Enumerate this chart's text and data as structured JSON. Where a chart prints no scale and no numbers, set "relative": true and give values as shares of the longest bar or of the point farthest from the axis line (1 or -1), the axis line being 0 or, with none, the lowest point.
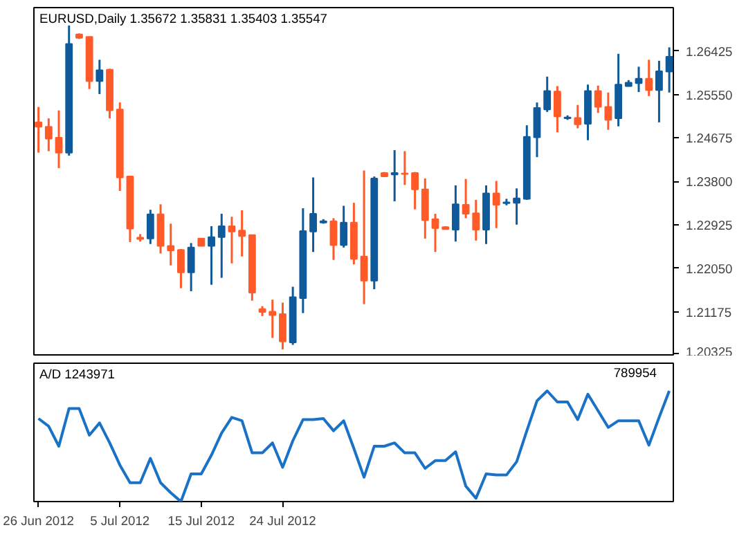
{
  "chart_data": [
    {
      "type": "candlestick",
      "title": "EURUSD,Daily  1.35672 1.35831 1.35403 1.35547",
      "categories": [
        null,
        null,
        null,
        null,
        null,
        null,
        null,
        null,
        null,
        null,
        null,
        null,
        null,
        null,
        null,
        null,
        null,
        null,
        null,
        null,
        null,
        null,
        null,
        null,
        null,
        null,
        null,
        null,
        null,
        null,
        null,
        null,
        null,
        null,
        null,
        null,
        null,
        null,
        null,
        null,
        null,
        null,
        null,
        null,
        null,
        null,
        null,
        null,
        null,
        null,
        null,
        null,
        null,
        null,
        null,
        null,
        null,
        null,
        null,
        null,
        null,
        null,
        null
      ],
      "ohlc": [
        [
          1.2499,
          1.253,
          1.2438,
          1.249
        ],
        [
          1.249,
          1.2507,
          1.2441,
          1.2466
        ],
        [
          1.2468,
          1.2523,
          1.2407,
          1.2438
        ],
        [
          1.2438,
          1.2694,
          1.2432,
          1.2657
        ],
        [
          1.2676,
          1.2678,
          1.2667,
          1.2669
        ],
        [
          1.2671,
          1.2671,
          1.2566,
          1.2582
        ],
        [
          1.2582,
          1.2625,
          1.2556,
          1.2604
        ],
        [
          1.2605,
          1.2607,
          1.2507,
          1.2523
        ],
        [
          1.2525,
          1.2539,
          1.2361,
          1.2388
        ],
        [
          1.239,
          1.239,
          1.2258,
          1.2285
        ],
        [
          1.2267,
          1.2274,
          1.2259,
          1.2264
        ],
        [
          1.2265,
          1.2323,
          1.2254,
          1.2314
        ],
        [
          1.2314,
          1.2334,
          1.2235,
          1.225
        ],
        [
          1.225,
          1.2295,
          1.2211,
          1.2241
        ],
        [
          1.2242,
          1.2244,
          1.2165,
          1.2197
        ],
        [
          1.2197,
          1.2256,
          1.2159,
          1.2247
        ],
        [
          1.2265,
          1.2265,
          1.225,
          1.225
        ],
        [
          1.225,
          1.229,
          1.2172,
          1.2268
        ],
        [
          1.2268,
          1.2315,
          1.2186,
          1.229
        ],
        [
          1.229,
          1.2309,
          1.2215,
          1.2279
        ],
        [
          1.2281,
          1.2322,
          1.2229,
          1.227
        ],
        [
          1.2272,
          1.2272,
          1.214,
          1.2156
        ],
        [
          1.2123,
          1.2129,
          1.2109,
          1.2117
        ],
        [
          1.2118,
          1.2142,
          1.2065,
          1.2111
        ],
        [
          1.2113,
          1.2136,
          1.2042,
          1.2058
        ],
        [
          1.2056,
          1.2168,
          1.2051,
          1.2147
        ],
        [
          1.2145,
          1.2326,
          1.2115,
          1.228
        ],
        [
          1.2279,
          1.2388,
          1.2238,
          1.2315
        ],
        [
          1.2297,
          1.2304,
          1.2295,
          1.23
        ],
        [
          1.23,
          1.2306,
          1.2222,
          1.2252
        ],
        [
          1.2252,
          1.2331,
          1.2247,
          1.2297
        ],
        [
          1.2297,
          1.2337,
          1.2213,
          1.2224
        ],
        [
          1.2229,
          1.2402,
          1.2133,
          1.218
        ],
        [
          1.218,
          1.239,
          1.2163,
          1.2386
        ],
        [
          1.2397,
          1.2399,
          1.239,
          1.239
        ],
        [
          1.2394,
          1.2443,
          1.234,
          1.2397
        ],
        [
          1.2396,
          1.2441,
          1.2373,
          1.2395
        ],
        [
          1.2397,
          1.2399,
          1.2324,
          1.2364
        ],
        [
          1.2364,
          1.2386,
          1.2265,
          1.2302
        ],
        [
          1.2304,
          1.2315,
          1.2238,
          1.2286
        ],
        [
          1.2288,
          1.229,
          1.2283,
          1.2284
        ],
        [
          1.2283,
          1.2372,
          1.2259,
          1.2334
        ],
        [
          1.2333,
          1.2385,
          1.2306,
          1.2315
        ],
        [
          1.2316,
          1.2343,
          1.2261,
          1.2283
        ],
        [
          1.2283,
          1.2372,
          1.2254,
          1.2356
        ],
        [
          1.2356,
          1.2381,
          1.2286,
          1.2333
        ],
        [
          1.2336,
          1.2345,
          1.2332,
          1.2338
        ],
        [
          1.2337,
          1.2366,
          1.2293,
          1.2346
        ],
        [
          1.2345,
          1.2493,
          1.2343,
          1.247
        ],
        [
          1.2469,
          1.2539,
          1.2429,
          1.2528
        ],
        [
          1.2525,
          1.2591,
          1.252,
          1.2562
        ],
        [
          1.2561,
          1.2572,
          1.2479,
          1.2511
        ],
        [
          1.2507,
          1.2513,
          1.2504,
          1.2509
        ],
        [
          1.2508,
          1.2534,
          1.2487,
          1.2495
        ],
        [
          1.2496,
          1.2575,
          1.2463,
          1.2562
        ],
        [
          1.2562,
          1.2573,
          1.2518,
          1.253
        ],
        [
          1.253,
          1.2559,
          1.2484,
          1.2504
        ],
        [
          1.2507,
          1.2637,
          1.2491,
          1.2575
        ],
        [
          1.2572,
          1.2584,
          1.2571,
          1.2579
        ],
        [
          1.2578,
          1.2611,
          1.256,
          1.2587
        ],
        [
          1.2587,
          1.2625,
          1.2552,
          1.2564
        ],
        [
          1.2564,
          1.2623,
          1.2499,
          1.2602
        ],
        [
          1.2601,
          1.265,
          1.2559,
          1.2631
        ]
      ],
      "colors": [
        "#ff5a28",
        "#ff5a28",
        "#ff5a28",
        "#0f5a9b",
        "#ff5a28",
        "#ff5a28",
        "#0f5a9b",
        "#ff5a28",
        "#ff5a28",
        "#ff5a28",
        "#ff5a28",
        "#0f5a9b",
        "#ff5a28",
        "#ff5a28",
        "#ff5a28",
        "#0f5a9b",
        "#ff5a28",
        "#0f5a9b",
        "#0f5a9b",
        "#ff5a28",
        "#ff5a28",
        "#ff5a28",
        "#ff5a28",
        "#ff5a28",
        "#ff5a28",
        "#0f5a9b",
        "#0f5a9b",
        "#0f5a9b",
        "#0f5a9b",
        "#ff5a28",
        "#0f5a9b",
        "#ff5a28",
        "#ff5a28",
        "#0f5a9b",
        "#ff5a28",
        "#0f5a9b",
        "#ff5a28",
        "#ff5a28",
        "#ff5a28",
        "#ff5a28",
        "#ff5a28",
        "#0f5a9b",
        "#ff5a28",
        "#ff5a28",
        "#0f5a9b",
        "#ff5a28",
        "#0f5a9b",
        "#0f5a9b",
        "#0f5a9b",
        "#0f5a9b",
        "#0f5a9b",
        "#ff5a28",
        "#0f5a9b",
        "#ff5a28",
        "#0f5a9b",
        "#ff5a28",
        "#ff5a28",
        "#0f5a9b",
        "#0f5a9b",
        "#0f5a9b",
        "#ff5a28",
        "#0f5a9b",
        "#0f5a9b"
      ],
      "ylim": [
        1.2028,
        1.273
      ],
      "yticks": [
        {
          "value": 1.20325,
          "label": "1.20325"
        },
        {
          "value": 1.21175,
          "label": "1.21175"
        },
        {
          "value": 1.2205,
          "label": "1.22050"
        },
        {
          "value": 1.22925,
          "label": "1.22925"
        },
        {
          "value": 1.238,
          "label": "1.23800"
        },
        {
          "value": 1.24675,
          "label": "1.24675"
        },
        {
          "value": 1.2555,
          "label": "1.25550"
        },
        {
          "value": 1.26425,
          "label": "1.26425"
        }
      ],
      "tick_labels": "y"
    },
    {
      "type": "line",
      "title": "A/D 1243971",
      "relative": true,
      "annotations": [
        "789954"
      ],
      "color": "#1a72c6",
      "categories": [
        "26 Jun 2012",
        null,
        null,
        null,
        null,
        null,
        null,
        null,
        "5 Jul 2012",
        null,
        null,
        null,
        null,
        null,
        null,
        null,
        "15 Jul 2012",
        null,
        null,
        null,
        null,
        null,
        null,
        null,
        "24 Jul 2012",
        null,
        null,
        null,
        null,
        null,
        null,
        null,
        null,
        null,
        null,
        null,
        null,
        null,
        null,
        null,
        null,
        null,
        null,
        null,
        null,
        null,
        null,
        null,
        null,
        null,
        null,
        null,
        null,
        null,
        null,
        null,
        null,
        null,
        null,
        null,
        null,
        null,
        null
      ],
      "values": [
        0.75,
        0.68,
        0.5,
        0.84,
        0.84,
        0.6,
        0.71,
        0.53,
        0.33,
        0.17,
        0.17,
        0.39,
        0.17,
        0.08,
        0,
        0.25,
        0.25,
        0.42,
        0.62,
        0.76,
        0.73,
        0.44,
        0.44,
        0.53,
        0.31,
        0.55,
        0.74,
        0.74,
        0.75,
        0.64,
        0.73,
        0.48,
        0.22,
        0.5,
        0.5,
        0.53,
        0.44,
        0.44,
        0.3,
        0.37,
        0.37,
        0.45,
        0.14,
        0.03,
        0.25,
        0.24,
        0.24,
        0.36,
        0.64,
        0.91,
        1,
        0.9,
        0.9,
        0.74,
        0.97,
        0.82,
        0.67,
        0.73,
        0.73,
        0.73,
        0.51,
        0.76,
        1
      ],
      "tick_labels": "x"
    }
  ]
}
